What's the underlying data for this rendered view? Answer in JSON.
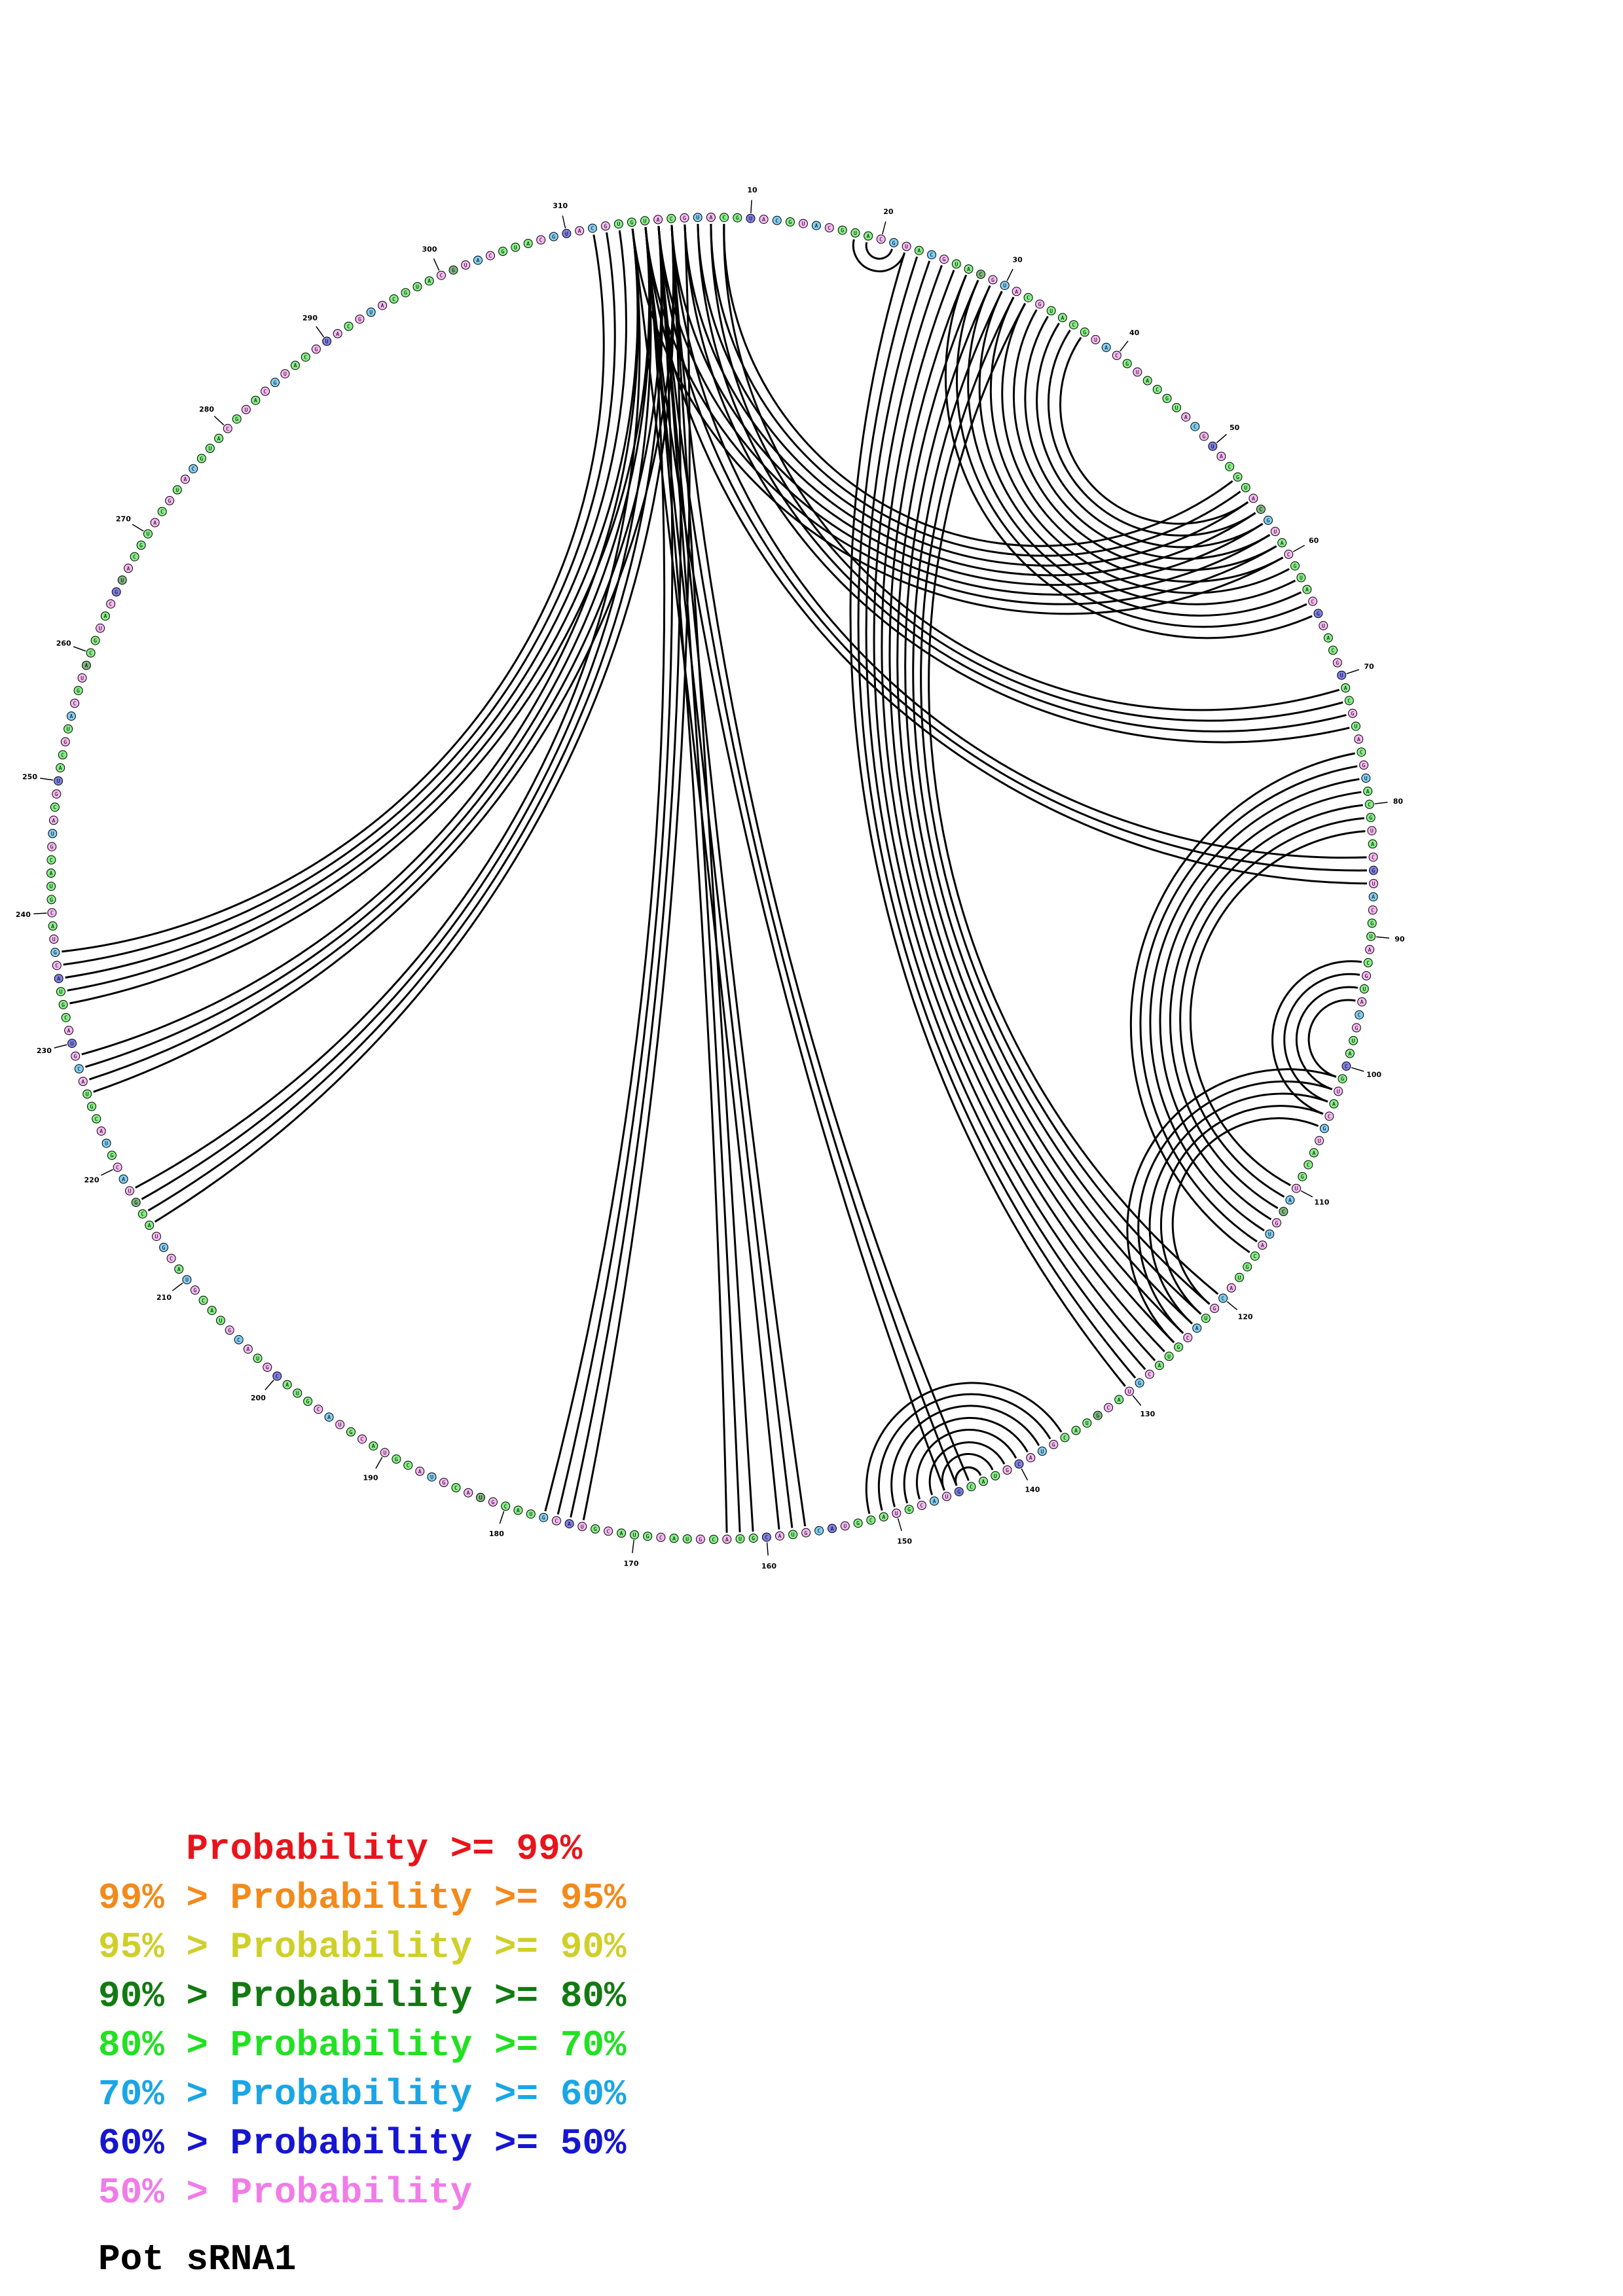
{
  "diagram": {
    "type": "circular-rna-secondary-structure",
    "sequence_length": 314,
    "tick_labels": [
      "10",
      "20",
      "30",
      "40",
      "50",
      "60",
      "70",
      "80",
      "90",
      "100",
      "110",
      "120",
      "130",
      "140",
      "150",
      "160",
      "170",
      "180",
      "190",
      "200",
      "210",
      "220",
      "230",
      "240",
      "250",
      "260",
      "270",
      "280",
      "290",
      "300",
      "310"
    ],
    "base_pairs": [
      [
        1,
        60,
        8
      ],
      [
        18,
        22,
        3
      ],
      [
        55,
        37,
        11
      ],
      [
        71,
        8,
        4
      ],
      [
        84,
        4,
        3
      ],
      [
        92,
        104,
        4
      ],
      [
        101,
        125,
        5
      ],
      [
        110,
        82,
        7
      ],
      [
        120,
        32,
        11
      ],
      [
        136,
        152,
        10
      ],
      [
        144,
        4,
        3
      ],
      [
        157,
        3,
        3
      ],
      [
        161,
        4,
        3
      ],
      [
        174,
        5,
        4
      ],
      [
        215,
        4,
        4
      ],
      [
        226,
        4,
        4
      ],
      [
        233,
        2,
        5
      ]
    ],
    "probability_colors": [
      "#e8141c",
      "#f28a1c",
      "#cfcf2a",
      "#137a13",
      "#22e022",
      "#1aa6e6",
      "#1616d0",
      "#f07ce8"
    ]
  },
  "legend": [
    {
      "prefix": "    ",
      "label": "Probability >= 99%",
      "color": "#e8141c"
    },
    {
      "prefix": "99% > ",
      "label": "Probability >= 95%",
      "color": "#f28a1c"
    },
    {
      "prefix": "95% > ",
      "label": "Probability >= 90%",
      "color": "#cfcf2a"
    },
    {
      "prefix": "90% > ",
      "label": "Probability >= 80%",
      "color": "#137a13"
    },
    {
      "prefix": "80% > ",
      "label": "Probability >= 70%",
      "color": "#22e022"
    },
    {
      "prefix": "70% > ",
      "label": "Probability >= 60%",
      "color": "#1aa6e6"
    },
    {
      "prefix": "60% > ",
      "label": "Probability >= 50%",
      "color": "#1616d0"
    },
    {
      "prefix": "50% > ",
      "label": "Probability",
      "color": "#f07ce8"
    }
  ],
  "title": "Pot sRNA1"
}
